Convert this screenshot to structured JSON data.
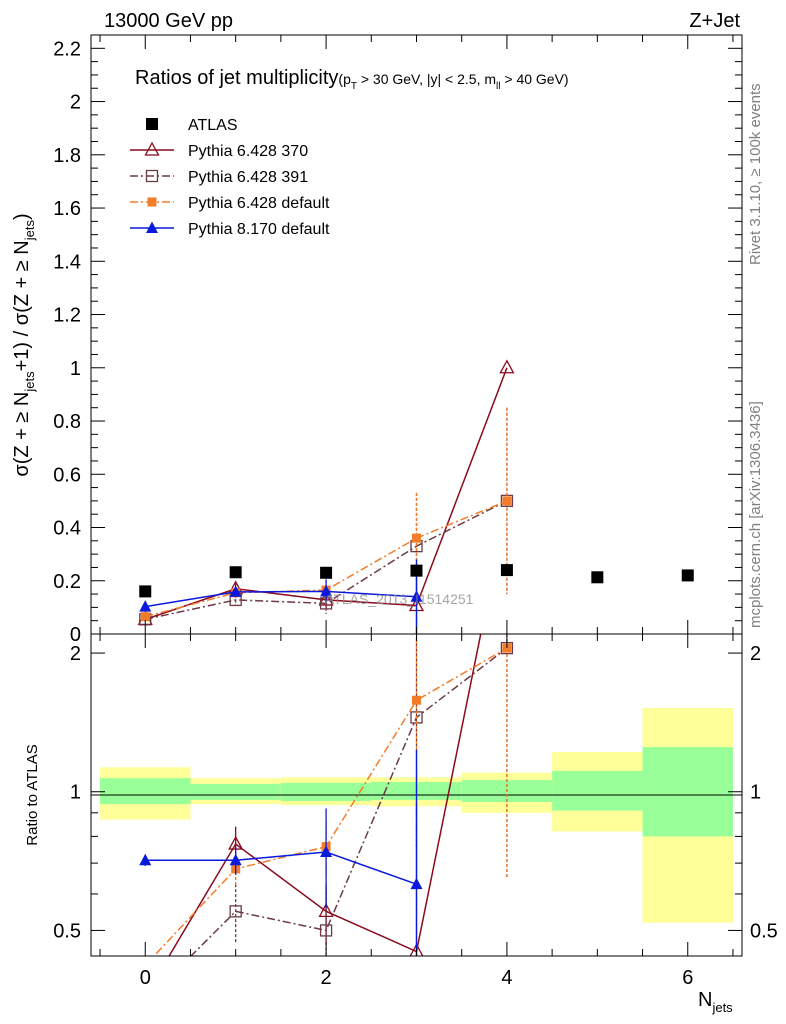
{
  "header": {
    "left": "13000 GeV pp",
    "right": "Z+Jet"
  },
  "side_labels": {
    "rivet": "Rivet 3.1.10, ≥ 100k events",
    "mcplots": "mcplots.cern.ch [arXiv:1306.3436]"
  },
  "chart_data": {
    "type": "scatter",
    "title": "Ratios of jet multiplicity",
    "title_suffix": {
      "pre": "(p",
      "sub1": "T",
      "mid1": " > 30 GeV, |y| < 2.5, m",
      "sub2": "ll",
      "post": " > 40 GeV)"
    },
    "watermark": "ATLAS_2013_I1514251",
    "top_ylabel": "σ(Z + ≥ N_jets+1) / σ(Z + ≥ N_jets)",
    "bottom_ylabel": "Ratio to ATLAS",
    "xlabel": "N_jets",
    "xlim": [
      -0.6,
      6.6
    ],
    "top_ylim": [
      0,
      2.25
    ],
    "bottom_ylim": [
      0.44,
      2.2
    ],
    "x_ticks": [
      0,
      2,
      4,
      6
    ],
    "top_y_ticks": [
      0,
      0.2,
      0.4,
      0.6,
      0.8,
      1,
      1.2,
      1.4,
      1.6,
      1.8,
      2,
      2.2
    ],
    "bottom_y_ticks": [
      0.5,
      1,
      2
    ],
    "bottom_y_ticks_right": [
      0.5,
      1,
      2
    ],
    "legend_position": "top-left",
    "band": [
      {
        "x0": -0.5,
        "x1": 0.5,
        "y_lo": 0.87,
        "y_hi": 1.13,
        "g_lo": 0.94,
        "g_hi": 1.07
      },
      {
        "x0": 0.5,
        "x1": 1.5,
        "y_lo": 0.94,
        "y_hi": 1.07,
        "g_lo": 0.96,
        "g_hi": 1.04
      },
      {
        "x0": 1.5,
        "x1": 2.5,
        "y_lo": 0.935,
        "y_hi": 1.075,
        "g_lo": 0.955,
        "g_hi": 1.045
      },
      {
        "x0": 2.5,
        "x1": 3.5,
        "y_lo": 0.93,
        "y_hi": 1.075,
        "g_lo": 0.96,
        "g_hi": 1.05
      },
      {
        "x0": 3.5,
        "x1": 4.5,
        "y_lo": 0.9,
        "y_hi": 1.1,
        "g_lo": 0.95,
        "g_hi": 1.06
      },
      {
        "x0": 4.5,
        "x1": 5.5,
        "y_lo": 0.82,
        "y_hi": 1.22,
        "g_lo": 0.91,
        "g_hi": 1.11
      },
      {
        "x0": 5.5,
        "x1": 6.5,
        "y_lo": 0.52,
        "y_hi": 1.52,
        "g_lo": 0.8,
        "g_hi": 1.25
      }
    ],
    "series": [
      {
        "name": "ATLAS",
        "color": "#000000",
        "marker": "square-filled",
        "line": "none",
        "x": [
          0,
          1,
          2,
          3,
          4,
          5,
          6
        ],
        "y": [
          0.16,
          0.232,
          0.23,
          0.238,
          0.24,
          0.213,
          0.22
        ],
        "ratio": [
          1,
          1,
          1,
          1,
          1,
          1,
          1
        ],
        "err_top": [
          0.004,
          0.004,
          0.005,
          0.006,
          0.008,
          0.012,
          0.015
        ],
        "err_ratio": [
          0,
          0,
          0,
          0,
          0,
          0,
          0
        ]
      },
      {
        "name": "Pythia 6.428 370",
        "color": "#8b0a1e",
        "marker": "triangle-open",
        "line": "solid",
        "x": [
          0,
          1,
          2,
          3,
          4
        ],
        "y": [
          0.055,
          0.17,
          0.128,
          0.107,
          1.0
        ],
        "ratio": [
          0.36,
          0.77,
          0.55,
          0.45,
          4.2
        ],
        "err_top": [
          0.004,
          0.02,
          0.03,
          0.12,
          0
        ],
        "err_ratio": [
          0.01,
          0.07,
          0.08,
          0.5,
          0
        ]
      },
      {
        "name": "Pythia 6.428 391",
        "color": "#6b3a44",
        "marker": "square-open",
        "line": "dashdot",
        "x": [
          0,
          1,
          2,
          3,
          4
        ],
        "y": [
          0.055,
          0.128,
          0.115,
          0.33,
          0.5
        ],
        "ratio": [
          0.35,
          0.55,
          0.5,
          1.45,
          2.05
        ],
        "err_top": [
          0.004,
          0.02,
          0.04,
          0.2,
          0.35
        ],
        "err_ratio": [
          0.01,
          0.08,
          0.12,
          0.7,
          1.4
        ]
      },
      {
        "name": "Pythia 6.428 default",
        "color": "#f27c2a",
        "marker": "square-filled-small",
        "line": "dashdot",
        "x": [
          0,
          1,
          2,
          3,
          4
        ],
        "y": [
          0.065,
          0.155,
          0.165,
          0.36,
          0.5
        ],
        "ratio": [
          0.42,
          0.68,
          0.76,
          1.58,
          2.05
        ],
        "err_top": [
          0.004,
          0.02,
          0.04,
          0.17,
          0.35
        ],
        "err_ratio": [
          0.01,
          0.06,
          0.1,
          0.6,
          1.4
        ]
      },
      {
        "name": "Pythia 8.170 default",
        "color": "#0a1adc",
        "marker": "triangle-filled",
        "line": "solid",
        "x": [
          0,
          1,
          2,
          3
        ],
        "y": [
          0.103,
          0.158,
          0.16,
          0.14
        ],
        "ratio": [
          0.71,
          0.71,
          0.74,
          0.63
        ],
        "err_top": [
          0.004,
          0.015,
          0.045,
          0.14
        ],
        "err_ratio": [
          0.02,
          0.05,
          0.18,
          0.6
        ]
      }
    ]
  }
}
